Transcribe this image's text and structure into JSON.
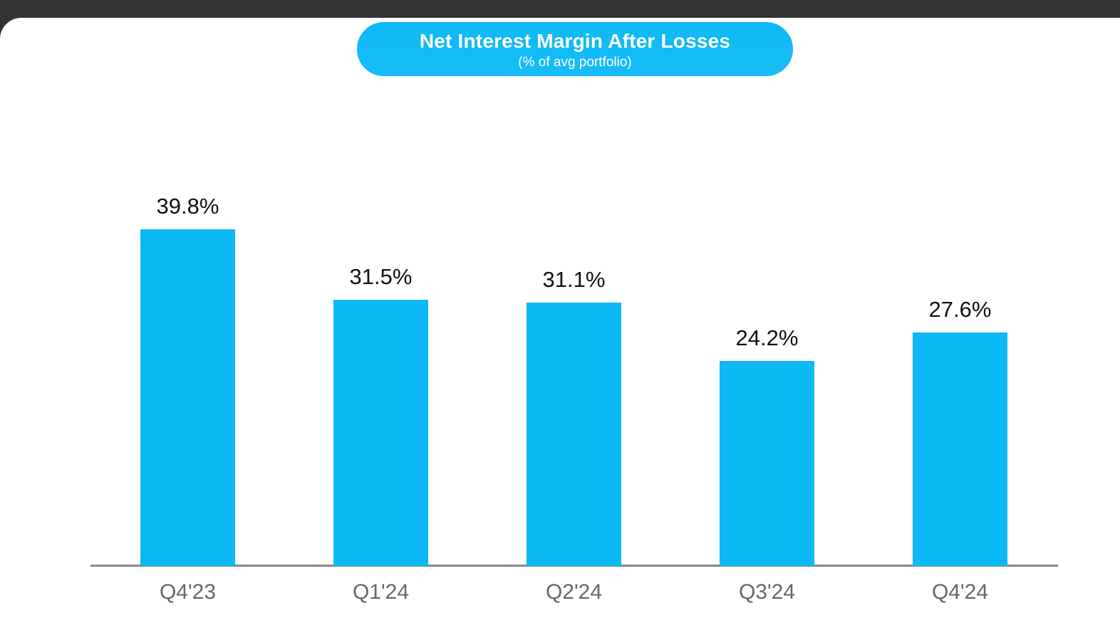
{
  "page": {
    "top_strip_color": "#333333",
    "background_color": "#ffffff"
  },
  "title_badge": {
    "title": "Net Interest Margin After Losses",
    "subtitle": "(% of avg portfolio)",
    "bg_color": "#0db9f5",
    "text_color": "#ffffff"
  },
  "chart_data": {
    "type": "bar",
    "title": "Net Interest Margin After Losses",
    "subtitle": "(% of avg portfolio)",
    "categories": [
      "Q4'23",
      "Q1'24",
      "Q2'24",
      "Q3'24",
      "Q4'24"
    ],
    "values": [
      39.8,
      31.5,
      31.1,
      24.2,
      27.6
    ],
    "value_labels": [
      "39.8%",
      "31.5%",
      "31.1%",
      "24.2%",
      "27.6%"
    ],
    "unit": "%",
    "xlabel": "",
    "ylabel": "",
    "ylim": [
      0,
      45
    ],
    "grid": false,
    "legend": false,
    "y_axis_visible": false,
    "bar_color": "#0db9f5",
    "axis_line_color": "#888888",
    "value_label_color": "#111111",
    "tick_label_color": "#666666"
  }
}
